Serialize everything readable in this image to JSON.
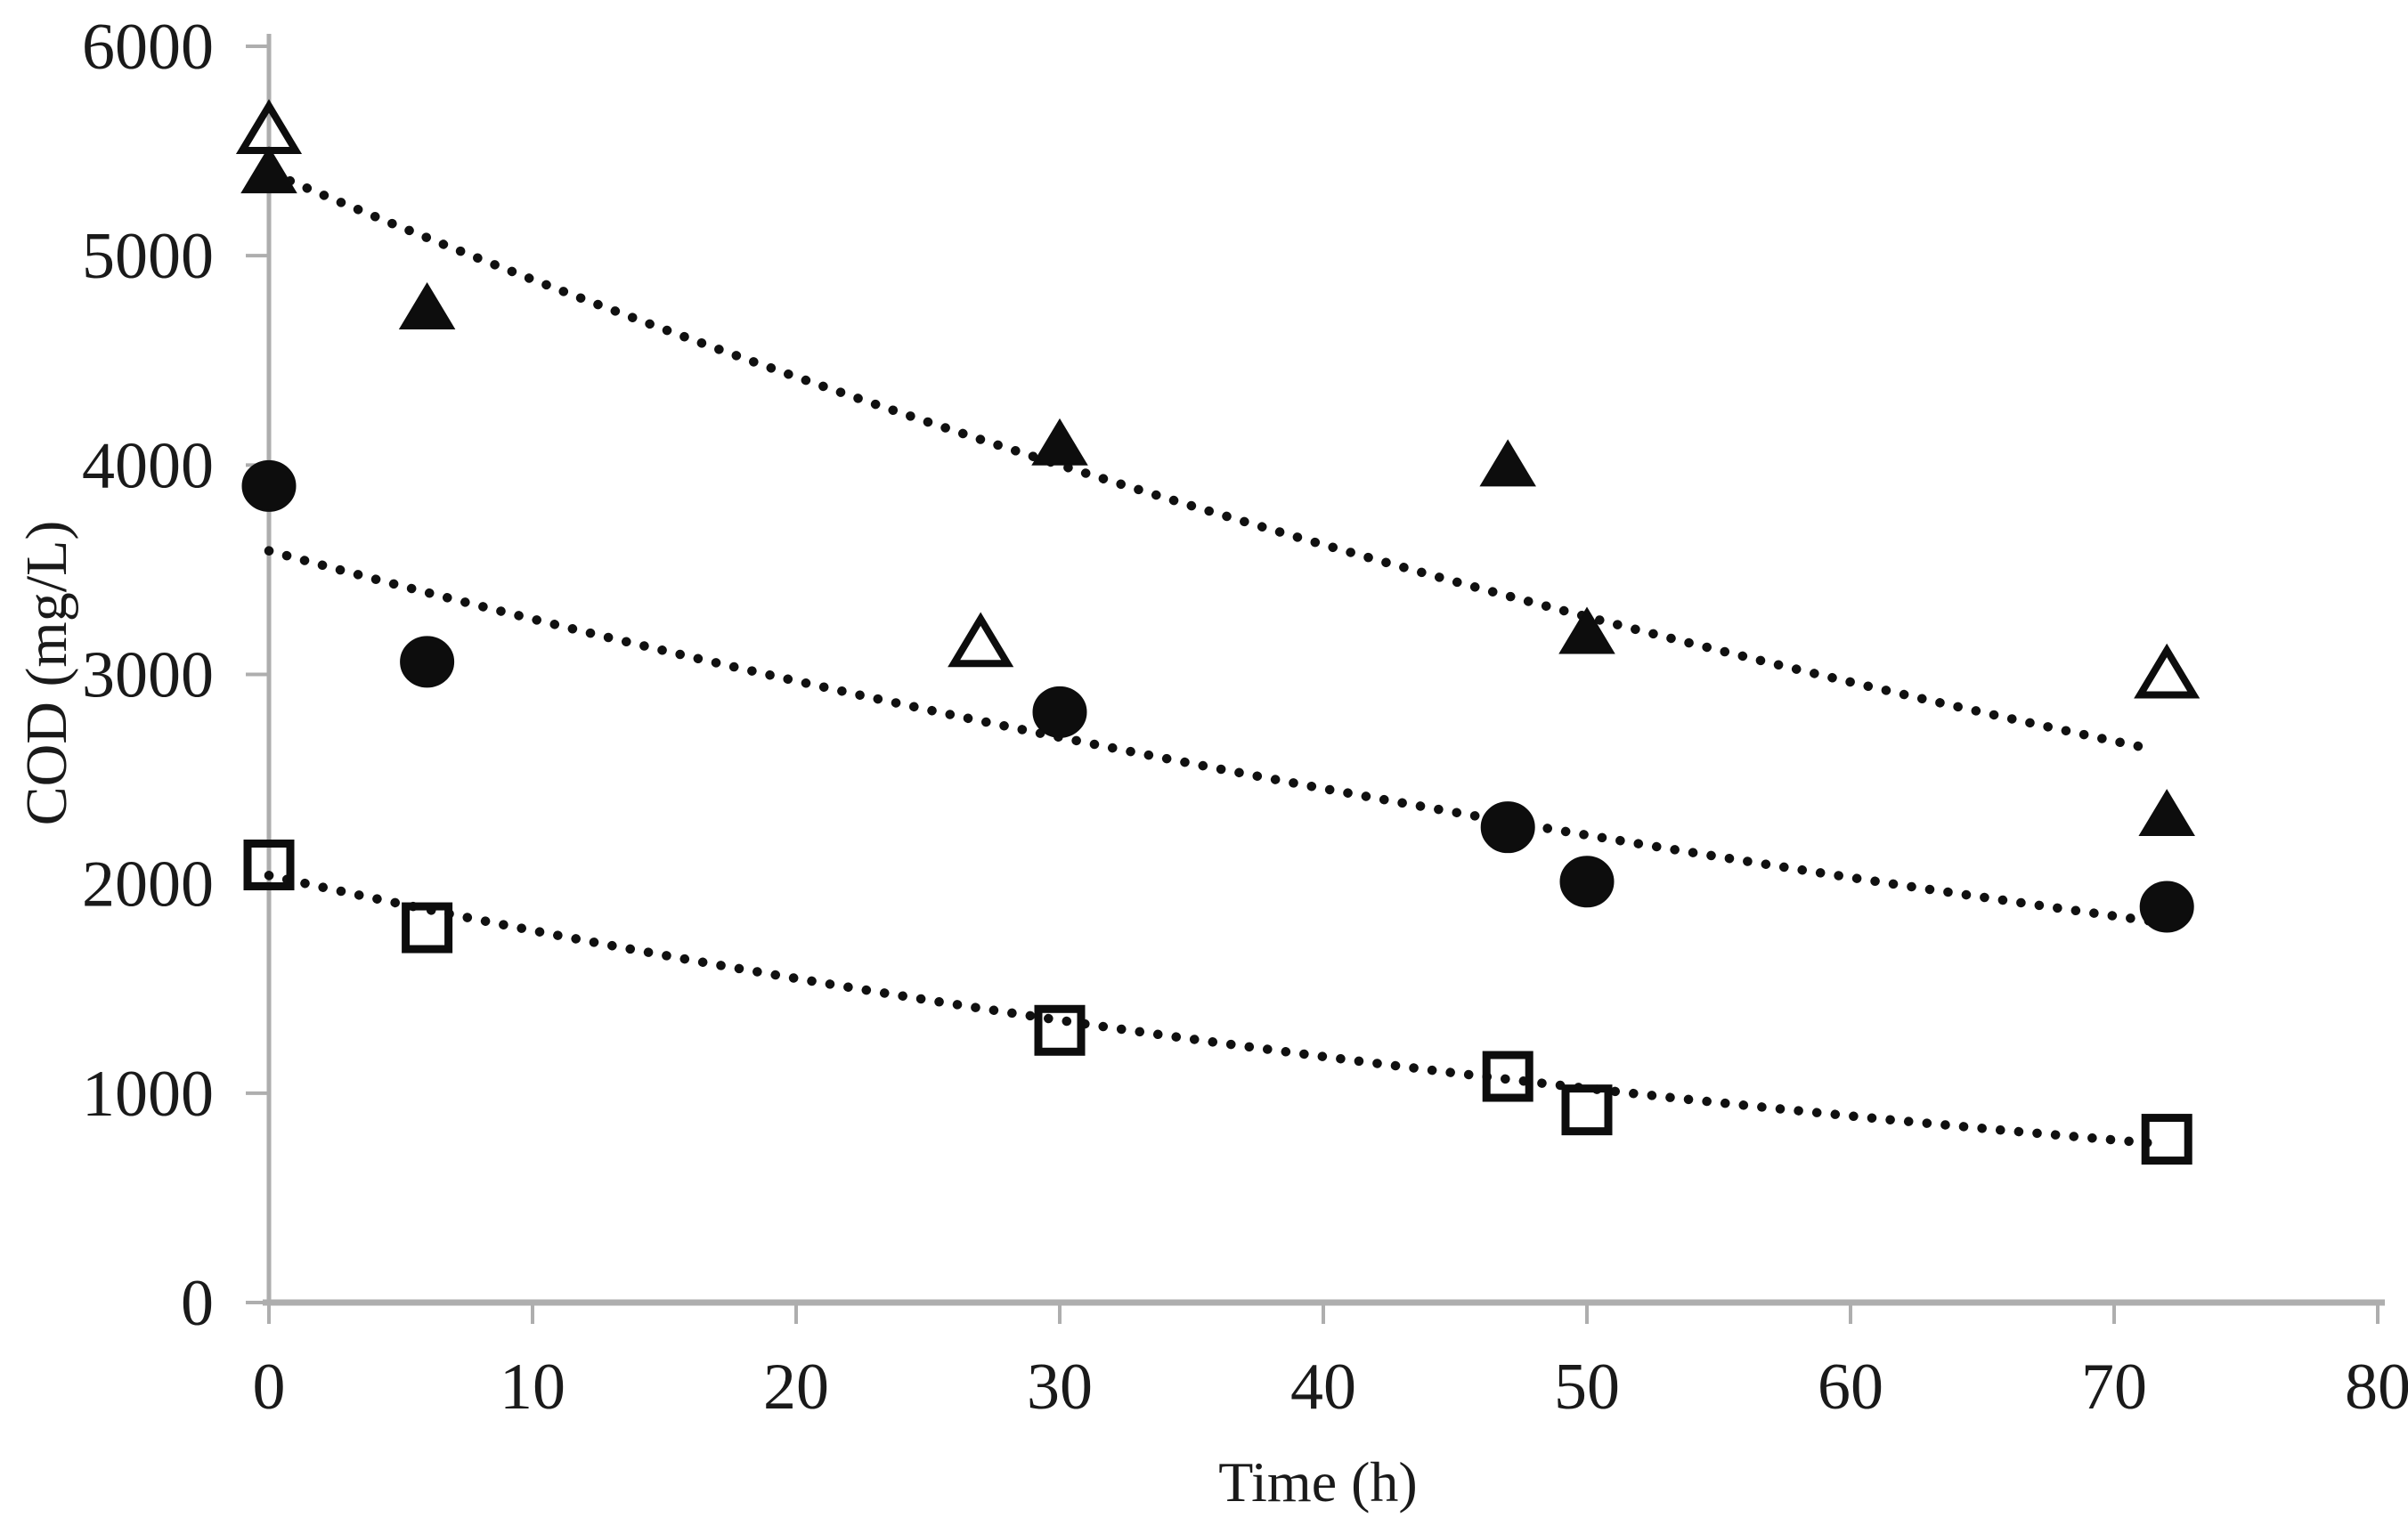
{
  "page": {
    "background": "#ffffff"
  },
  "chart_data": {
    "type": "scatter",
    "xlabel": "Time (h)",
    "ylabel": "COD (mg/L)",
    "xlim": [
      0,
      80
    ],
    "ylim": [
      0,
      6000
    ],
    "x_ticks": [
      0,
      10,
      20,
      30,
      40,
      50,
      60,
      70,
      80
    ],
    "y_ticks": [
      0,
      1000,
      2000,
      3000,
      4000,
      5000,
      6000
    ],
    "grid": false,
    "legend": "none",
    "colors": {
      "marker": "#0d0d0d",
      "trendline": "#101010",
      "axis": "#aeaeae",
      "text": "#1a1a1a"
    },
    "series": [
      {
        "name": "triangles-filled",
        "marker": "triangle",
        "fill": "solid",
        "points": [
          [
            0,
            5400
          ],
          [
            6,
            4750
          ],
          [
            30,
            4100
          ],
          [
            47,
            4000
          ],
          [
            50,
            3200
          ],
          [
            72,
            2330
          ]
        ]
      },
      {
        "name": "triangles-open",
        "marker": "triangle",
        "fill": "open",
        "points": [
          [
            0,
            5600
          ],
          [
            27,
            3150
          ],
          [
            72,
            3000
          ]
        ]
      },
      {
        "name": "circles-filled",
        "marker": "circle",
        "fill": "solid",
        "points": [
          [
            0,
            3900
          ],
          [
            6,
            3060
          ],
          [
            30,
            2820
          ],
          [
            47,
            2270
          ],
          [
            50,
            2010
          ],
          [
            72,
            1890
          ]
        ]
      },
      {
        "name": "squares-open",
        "marker": "square",
        "fill": "open",
        "points": [
          [
            0,
            2090
          ],
          [
            6,
            1790
          ],
          [
            30,
            1300
          ],
          [
            47,
            1080
          ],
          [
            50,
            920
          ],
          [
            72,
            780
          ]
        ]
      }
    ],
    "trendlines": [
      {
        "for_series": "triangles-filled",
        "style": "dotted",
        "model": "exponential",
        "y0": 5400,
        "k": 0.01,
        "t_range": [
          0.8,
          71.5
        ]
      },
      {
        "for_series": "circles-filled",
        "style": "dotted",
        "model": "exponential",
        "y0": 3590,
        "k": 0.0095,
        "t_range": [
          0,
          71.5
        ]
      },
      {
        "for_series": "squares-open",
        "style": "dotted",
        "model": "exponential",
        "y0": 2040,
        "k": 0.0138,
        "t_range": [
          0,
          71.5
        ]
      }
    ]
  }
}
